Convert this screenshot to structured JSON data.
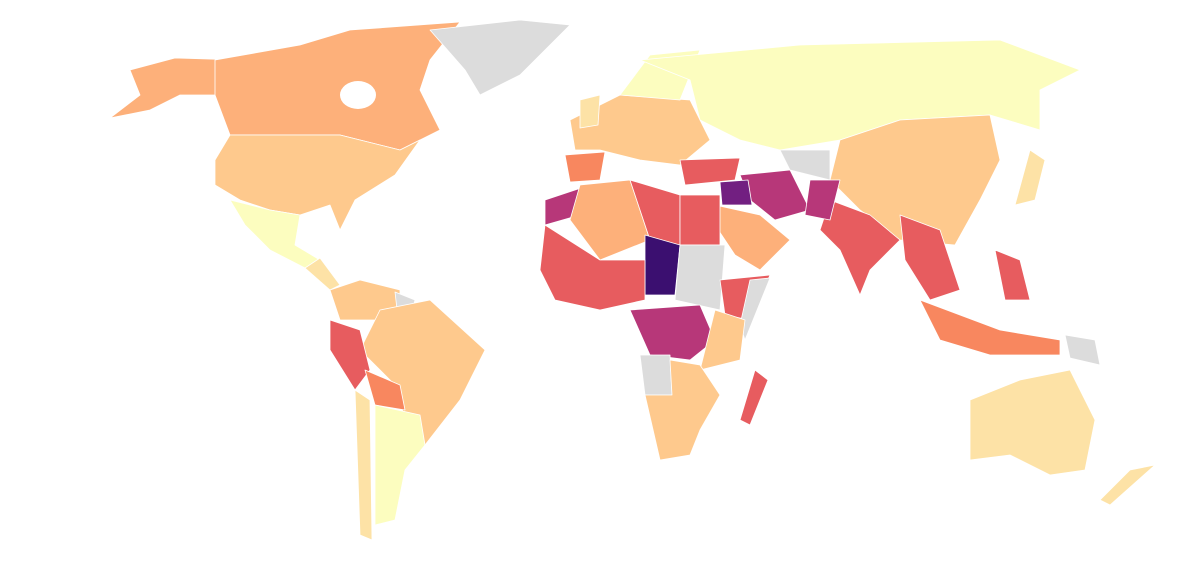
{
  "map": {
    "palette": [
      "#fcfdbf",
      "#fde2a6",
      "#fec98d",
      "#fdb07a",
      "#f8875f",
      "#e75c5f",
      "#b73779",
      "#721f81",
      "#3b0f70",
      "#dcdcdc"
    ]
  }
}
